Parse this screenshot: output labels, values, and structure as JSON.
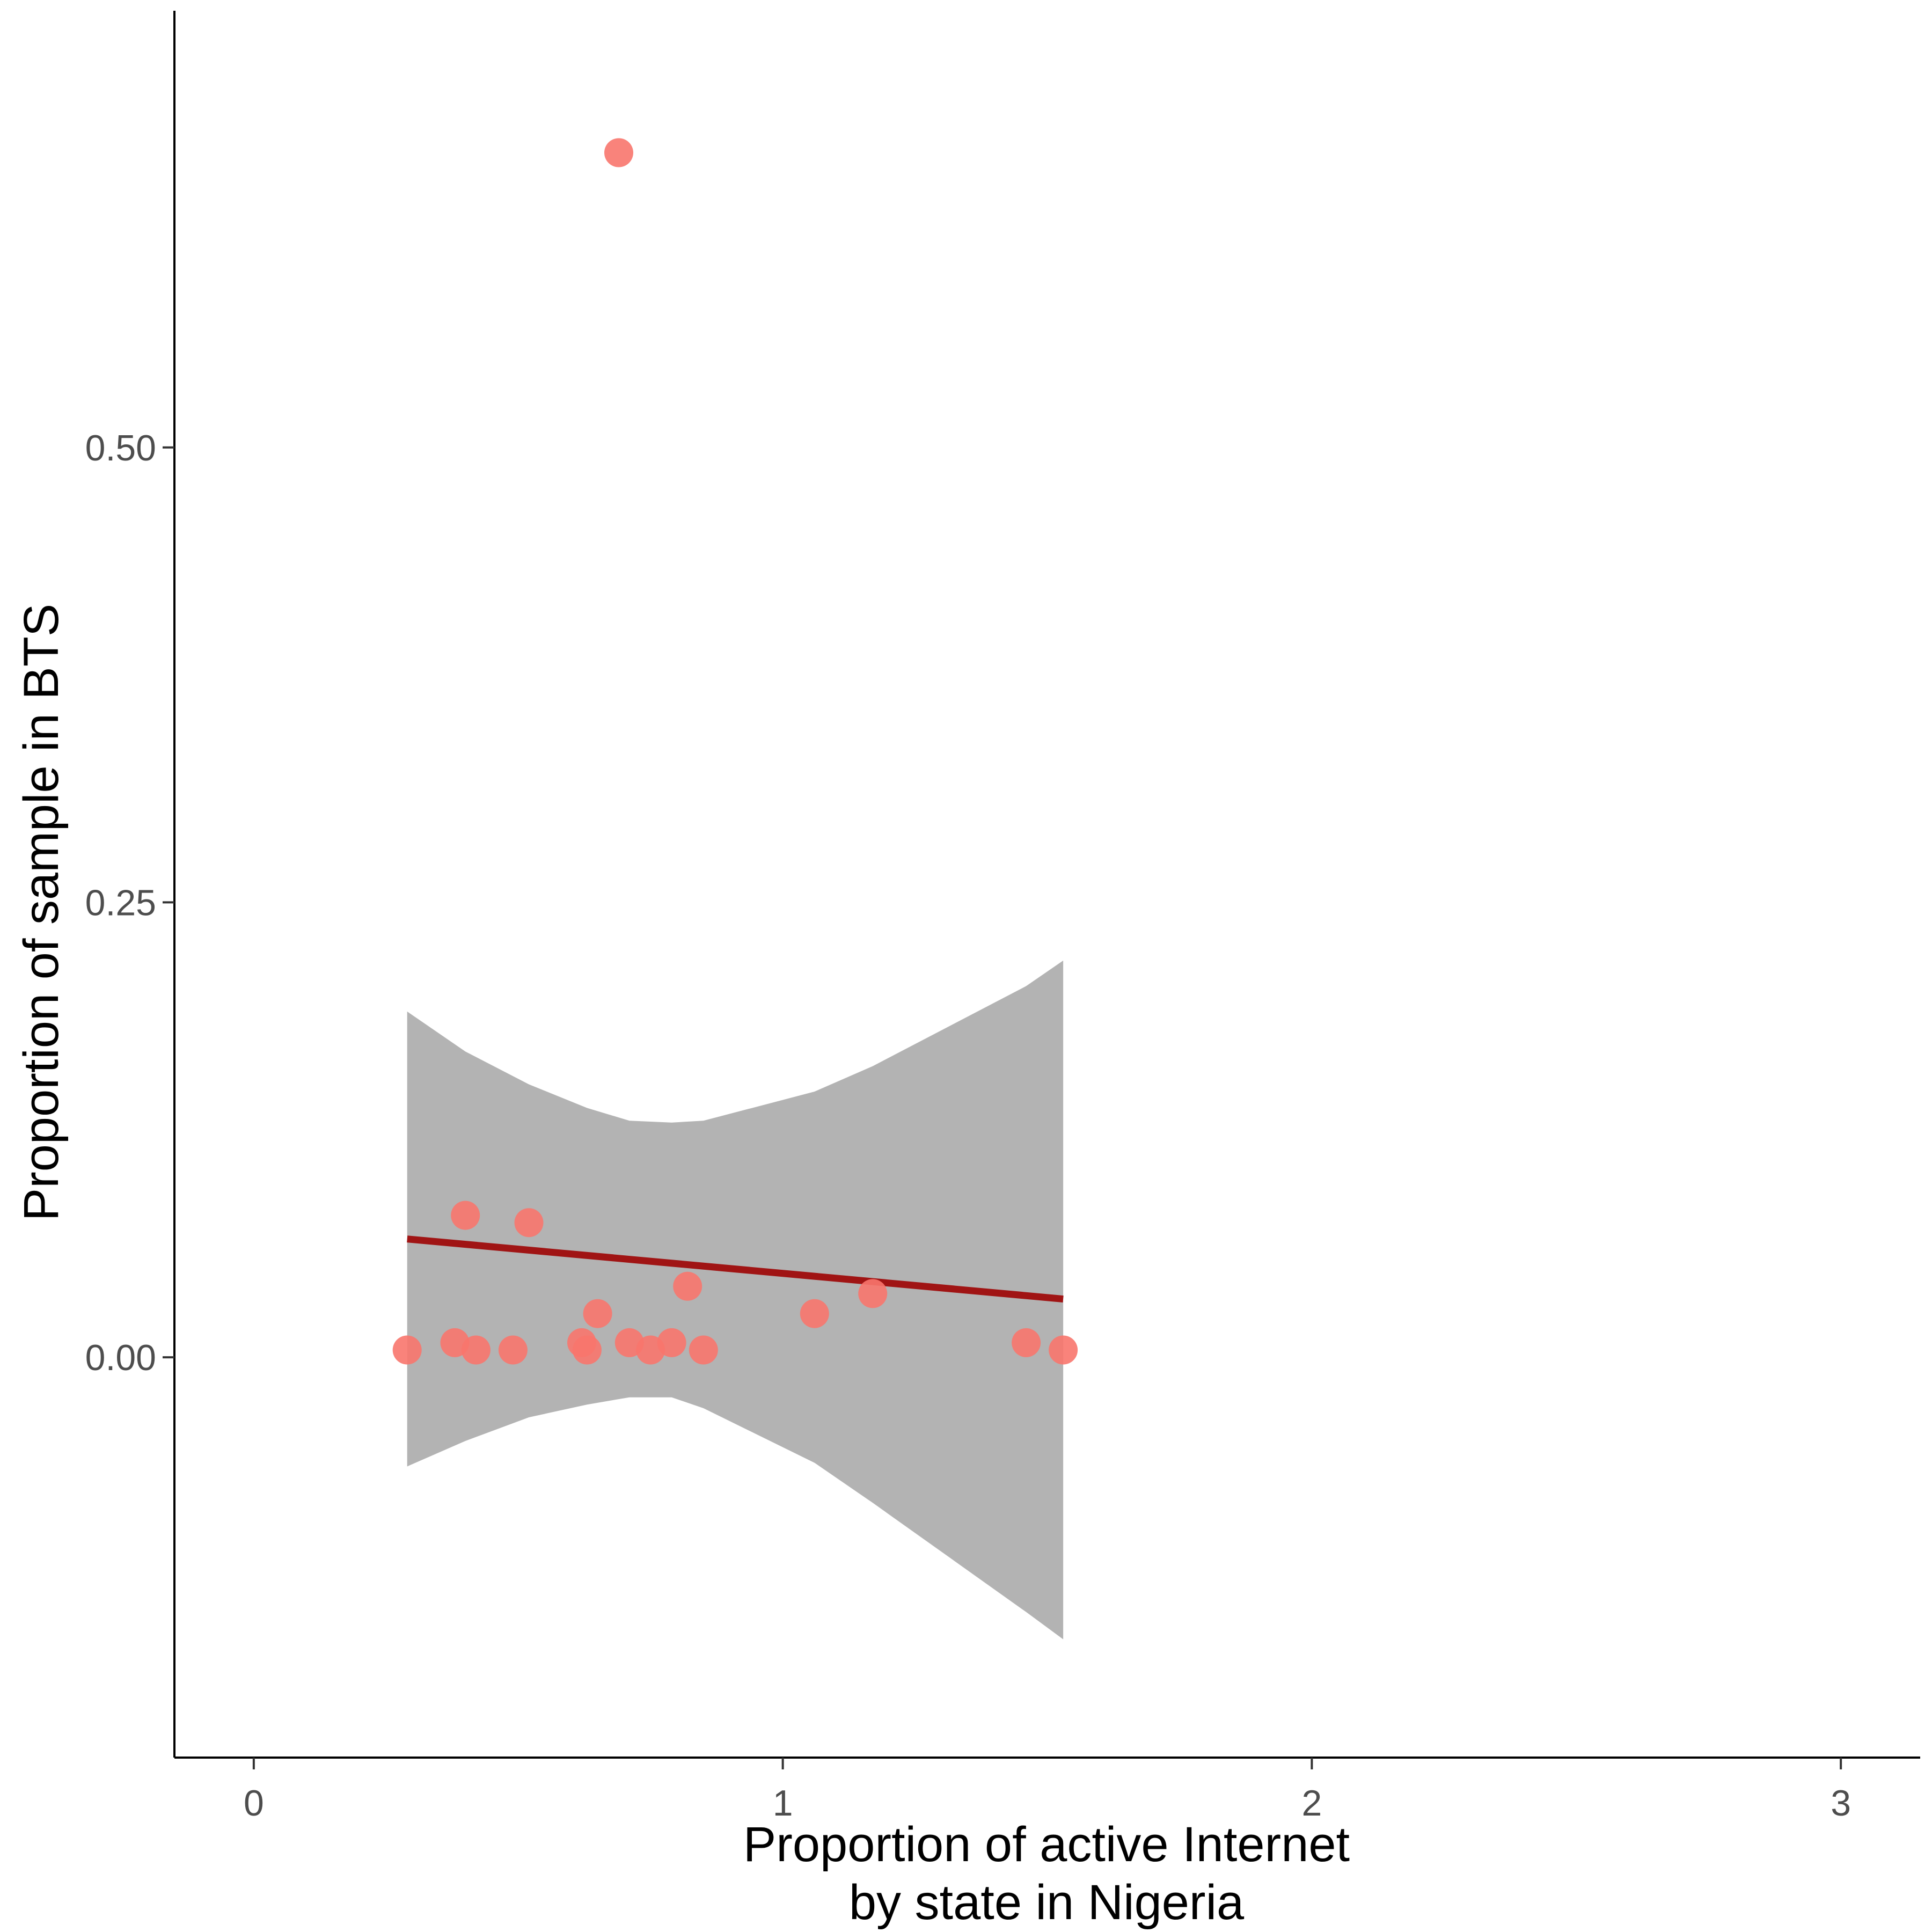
{
  "chart_data": {
    "type": "scatter",
    "title": "",
    "xlabel": [
      "Proportion of active Internet",
      "by state in Nigeria"
    ],
    "ylabel": "Proportion of sample in BTS",
    "xlim": [
      -0.15,
      3.15
    ],
    "ylim": [
      -0.22,
      0.74
    ],
    "x_ticks": [
      {
        "value": 0,
        "label": "0"
      },
      {
        "value": 1,
        "label": "1"
      },
      {
        "value": 2,
        "label": "2"
      },
      {
        "value": 3,
        "label": "3"
      }
    ],
    "y_ticks": [
      {
        "value": 0,
        "label": "0.00"
      },
      {
        "value": 0.25,
        "label": "0.25"
      },
      {
        "value": 0.5,
        "label": "0.50"
      }
    ],
    "grid": false,
    "legend": "none",
    "colors": {
      "points": "#f8766d",
      "fit_line": "#a01414",
      "confidence_band": "#999999"
    },
    "points": [
      {
        "x": 0.29,
        "y": 0.004
      },
      {
        "x": 0.38,
        "y": 0.008
      },
      {
        "x": 0.4,
        "y": 0.078
      },
      {
        "x": 0.42,
        "y": 0.004
      },
      {
        "x": 0.49,
        "y": 0.004
      },
      {
        "x": 0.52,
        "y": 0.074
      },
      {
        "x": 0.62,
        "y": 0.008
      },
      {
        "x": 0.63,
        "y": 0.004
      },
      {
        "x": 0.65,
        "y": 0.024
      },
      {
        "x": 0.69,
        "y": 0.662
      },
      {
        "x": 0.71,
        "y": 0.008
      },
      {
        "x": 0.75,
        "y": 0.004
      },
      {
        "x": 0.79,
        "y": 0.008
      },
      {
        "x": 0.82,
        "y": 0.039
      },
      {
        "x": 0.85,
        "y": 0.004
      },
      {
        "x": 1.06,
        "y": 0.024
      },
      {
        "x": 1.17,
        "y": 0.035
      },
      {
        "x": 1.46,
        "y": 0.008
      },
      {
        "x": 1.53,
        "y": 0.004
      }
    ],
    "fit_line": [
      {
        "x": 0.29,
        "y": 0.065
      },
      {
        "x": 1.53,
        "y": 0.032
      }
    ],
    "confidence_band": [
      {
        "x": 0.29,
        "upper": 0.19,
        "lower": -0.06
      },
      {
        "x": 0.4,
        "upper": 0.168,
        "lower": -0.046
      },
      {
        "x": 0.52,
        "upper": 0.15,
        "lower": -0.033
      },
      {
        "x": 0.63,
        "upper": 0.137,
        "lower": -0.026
      },
      {
        "x": 0.71,
        "upper": 0.13,
        "lower": -0.022
      },
      {
        "x": 0.79,
        "upper": 0.129,
        "lower": -0.022
      },
      {
        "x": 0.85,
        "upper": 0.13,
        "lower": -0.028
      },
      {
        "x": 1.06,
        "upper": 0.146,
        "lower": -0.058
      },
      {
        "x": 1.17,
        "upper": 0.16,
        "lower": -0.08
      },
      {
        "x": 1.46,
        "upper": 0.204,
        "lower": -0.14
      },
      {
        "x": 1.53,
        "upper": 0.218,
        "lower": -0.155
      }
    ]
  }
}
